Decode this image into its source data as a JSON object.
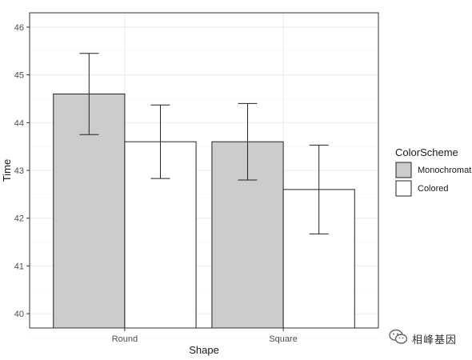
{
  "chart_data": {
    "type": "bar",
    "xlabel": "Shape",
    "ylabel": "Time",
    "categories": [
      "Round",
      "Square"
    ],
    "ylim": [
      39.7,
      46.3
    ],
    "yticks": [
      40,
      41,
      42,
      43,
      44,
      45,
      46
    ],
    "grid": true,
    "legend": {
      "title": "ColorScheme",
      "placement": "right"
    },
    "series": [
      {
        "name": "Monochromatic",
        "color": "#cccccc",
        "values": [
          44.6,
          43.6
        ],
        "error": [
          0.85,
          0.8
        ]
      },
      {
        "name": "Colored",
        "color": "#ffffff",
        "values": [
          43.6,
          42.6
        ],
        "error": [
          0.77,
          0.93
        ]
      }
    ]
  },
  "watermark": {
    "text": "相峰基因",
    "icon": "wechat-icon"
  }
}
